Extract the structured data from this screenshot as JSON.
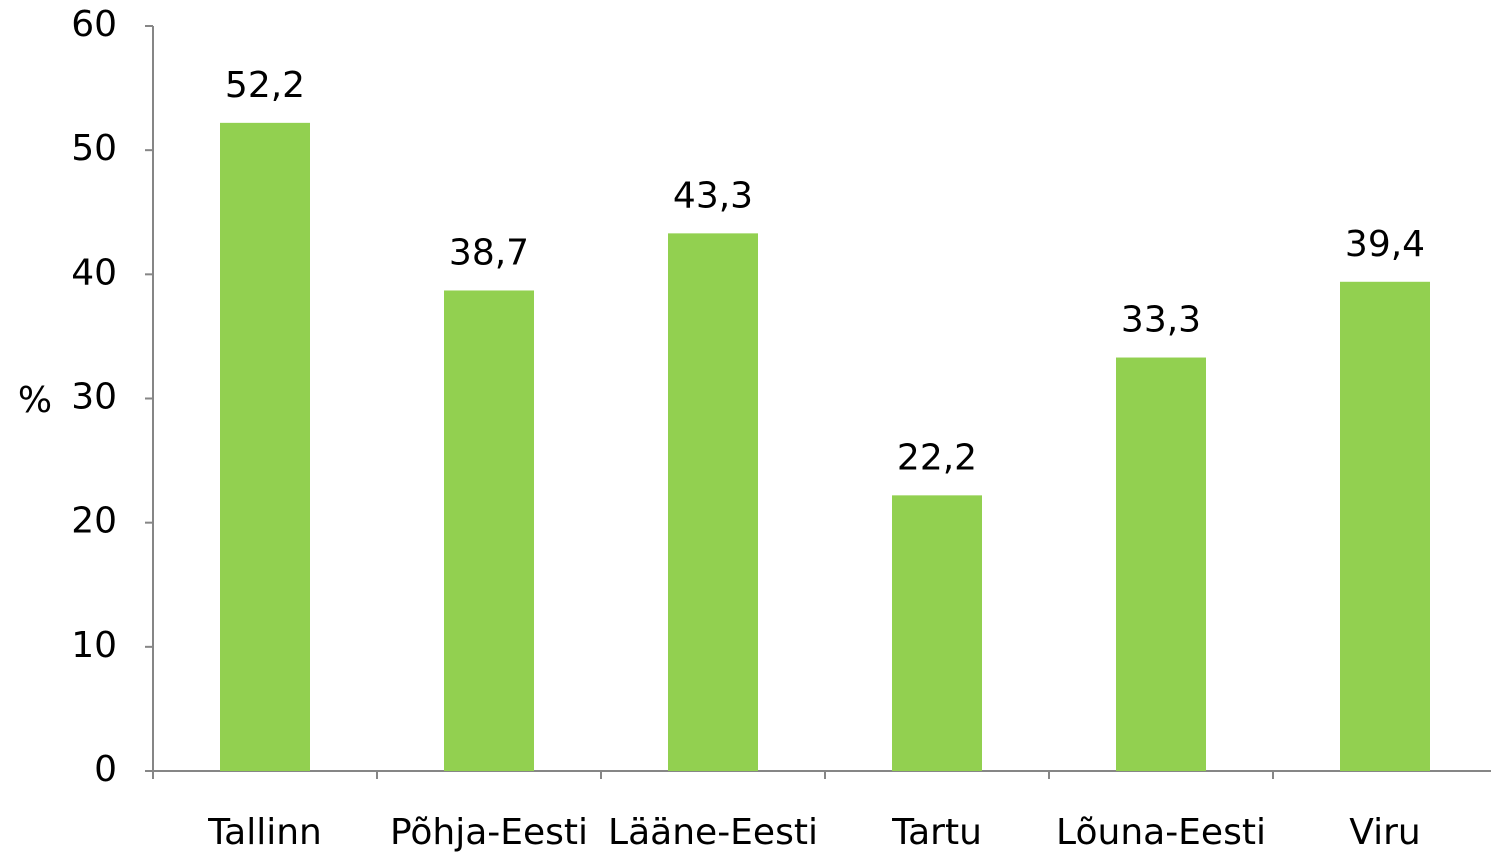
{
  "chart_data": {
    "type": "bar",
    "y_label": "%",
    "categories": [
      "Tallinn",
      "Põhja-Eesti",
      "Lääne-Eesti",
      "Tartu",
      "Lõuna-Eesti",
      "Viru"
    ],
    "values": [
      52.2,
      38.7,
      43.3,
      22.2,
      33.3,
      39.4
    ],
    "value_labels": [
      "52,2",
      "38,7",
      "43,3",
      "22,2",
      "33,3",
      "39,4"
    ],
    "color": "#92d050",
    "ylim": [
      0,
      60
    ],
    "yticks": [
      0,
      10,
      20,
      30,
      40,
      50,
      60
    ]
  }
}
